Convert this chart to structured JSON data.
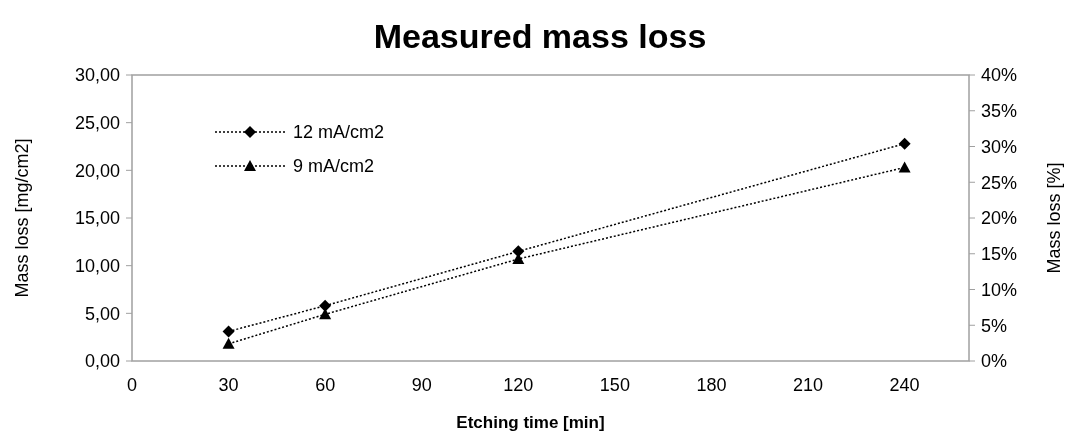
{
  "chart_data": {
    "type": "line",
    "title": "Measured mass loss",
    "xlabel": "Etching time [min]",
    "ylabel": "Mass loss [mg/cm2]",
    "y2label": "Mass loss [%]",
    "x": [
      30,
      60,
      120,
      240
    ],
    "series": [
      {
        "name": "12 mA/cm2",
        "color": "#000000",
        "marker": "diamond",
        "values": [
          3.1,
          5.8,
          11.5,
          22.8
        ]
      },
      {
        "name": "9 mA/cm2",
        "color": "#000000",
        "marker": "triangle",
        "values": [
          1.8,
          4.9,
          10.7,
          20.3
        ]
      }
    ],
    "xlim": [
      0,
      260
    ],
    "xticks": [
      0,
      30,
      60,
      90,
      120,
      150,
      180,
      210,
      240
    ],
    "ylim": [
      0,
      30
    ],
    "yticks": [
      {
        "value": 0,
        "label": "0,00"
      },
      {
        "value": 5,
        "label": "5,00"
      },
      {
        "value": 10,
        "label": "10,00"
      },
      {
        "value": 15,
        "label": "15,00"
      },
      {
        "value": 20,
        "label": "20,00"
      },
      {
        "value": 25,
        "label": "25,00"
      },
      {
        "value": 30,
        "label": "30,00"
      }
    ],
    "y2lim": [
      0,
      40
    ],
    "y2ticks": [
      {
        "value": 0,
        "label": "0%"
      },
      {
        "value": 5,
        "label": "5%"
      },
      {
        "value": 10,
        "label": "10%"
      },
      {
        "value": 15,
        "label": "15%"
      },
      {
        "value": 20,
        "label": "20%"
      },
      {
        "value": 25,
        "label": "25%"
      },
      {
        "value": 30,
        "label": "30%"
      },
      {
        "value": 35,
        "label": "35%"
      },
      {
        "value": 40,
        "label": "40%"
      }
    ],
    "line_style": "dotted",
    "legend": "top left",
    "grid": false
  }
}
